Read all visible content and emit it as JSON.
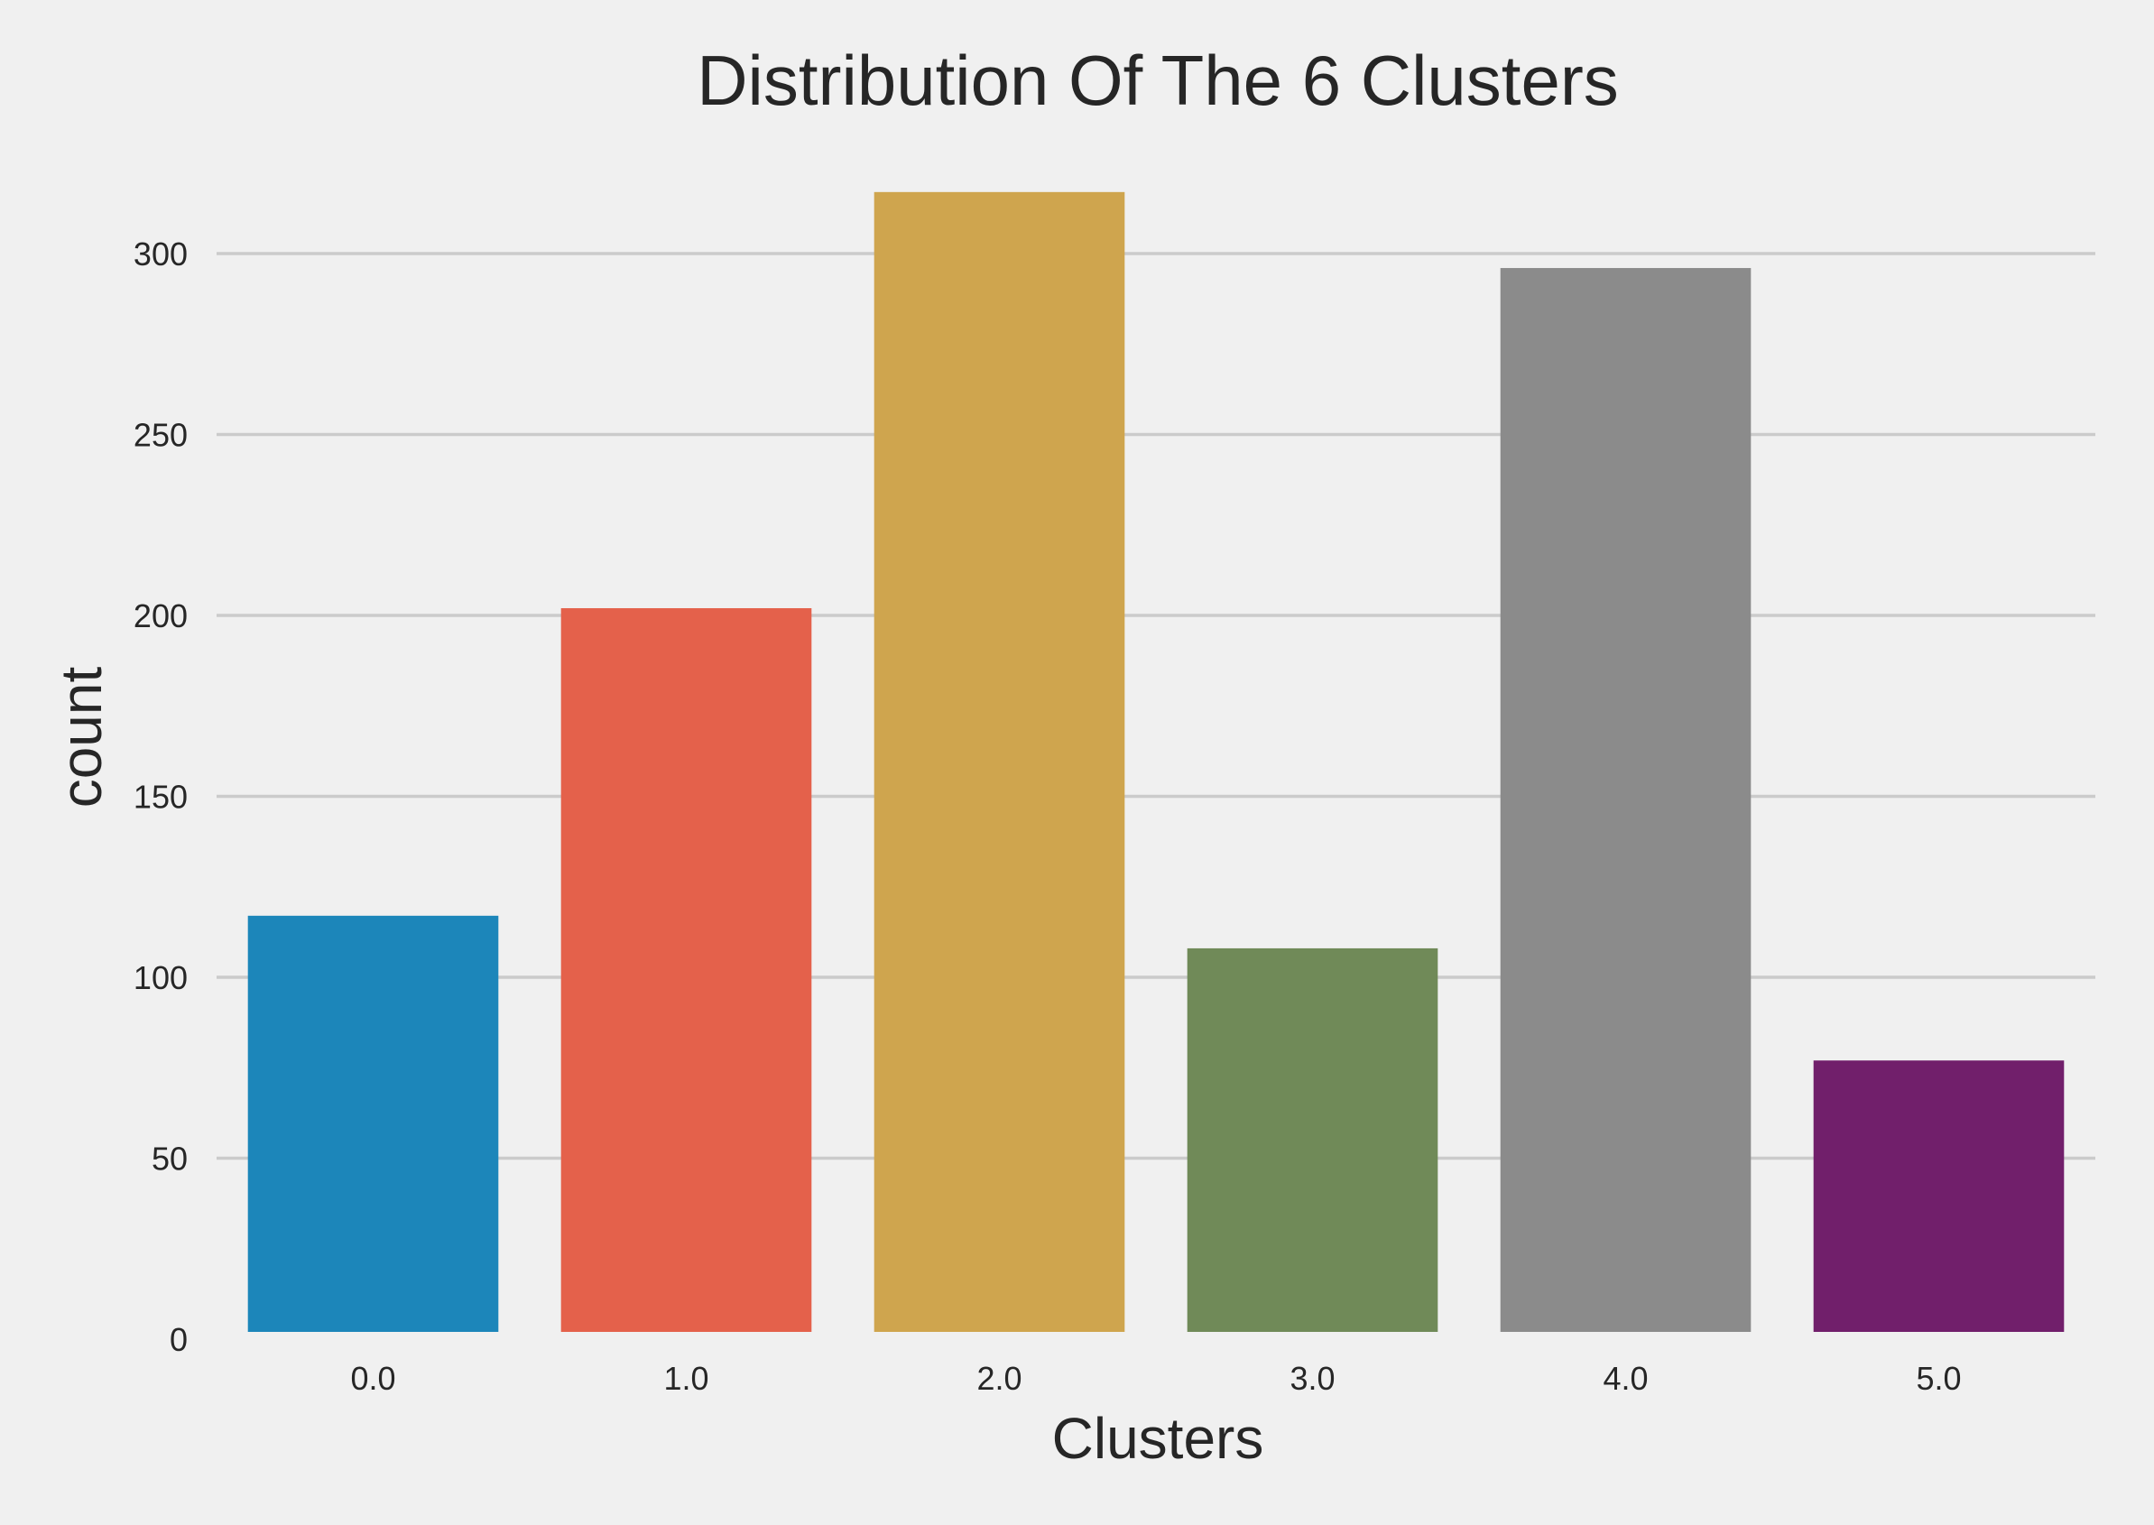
{
  "chart_data": {
    "type": "bar",
    "title": "Distribution Of The 6 Clusters",
    "xlabel": "Clusters",
    "ylabel": "count",
    "categories": [
      "0.0",
      "1.0",
      "2.0",
      "3.0",
      "4.0",
      "5.0"
    ],
    "values": [
      117,
      202,
      317,
      108,
      296,
      77
    ],
    "colors": [
      "#1c86ba",
      "#e4614b",
      "#cfa54e",
      "#708a58",
      "#8b8b8b",
      "#711f6b"
    ],
    "ylim": [
      0,
      330
    ],
    "yticks": [
      0,
      50,
      100,
      150,
      200,
      250,
      300
    ],
    "grid": "horizontal",
    "legend": "none"
  }
}
